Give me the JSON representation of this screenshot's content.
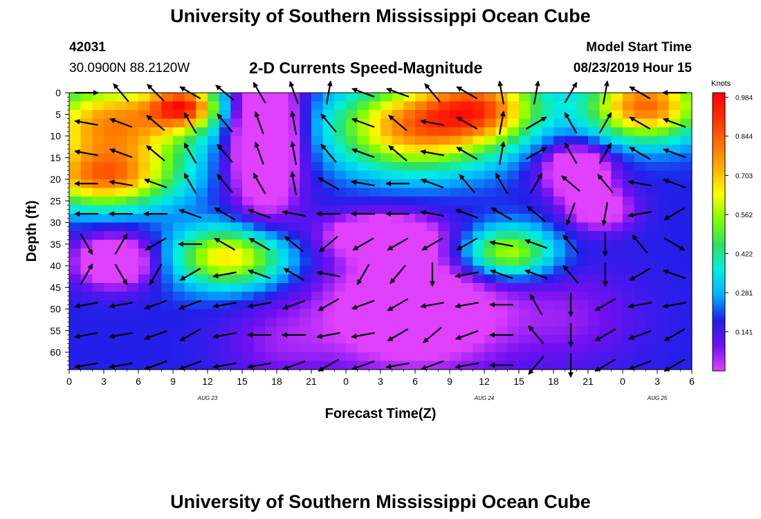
{
  "page": {
    "title_top": "University of Southern Mississippi Ocean Cube",
    "title_bottom": "University of Southern Mississippi Ocean Cube",
    "station_id": "42031",
    "station_location": "30.0900N 88.2120W",
    "subtitle": "2-D Currents Speed-Magnitude",
    "model_start_label": "Model Start Time",
    "model_start_value": "08/23/2019 Hour 15"
  },
  "chart_data": {
    "type": "heatmap",
    "title": "2-D Currents Speed-Magnitude",
    "xlabel": "Forecast Time(Z)",
    "ylabel": "Depth (ft)",
    "x_tick_labels": [
      "0",
      "3",
      "6",
      "9",
      "12",
      "15",
      "18",
      "21",
      "0",
      "3",
      "6",
      "9",
      "12",
      "15",
      "18",
      "21",
      "0",
      "3",
      "6"
    ],
    "date_labels": [
      "AUG 23",
      "AUG 24",
      "AUG 25"
    ],
    "y_tick_labels": [
      "0",
      "5",
      "10",
      "15",
      "20",
      "25",
      "30",
      "35",
      "40",
      "45",
      "50",
      "55",
      "60"
    ],
    "ylim": [
      0,
      64
    ],
    "y_inverted": true,
    "colorbar": {
      "unit": "Knots",
      "tick_labels": [
        "0.984",
        "0.844",
        "0.703",
        "0.562",
        "0.422",
        "0.281",
        "0.141"
      ],
      "range": [
        0,
        1.0
      ],
      "colors": [
        "#e040ff",
        "#7010f0",
        "#2020e8",
        "#00b0ff",
        "#00f0e0",
        "#30e060",
        "#80ff00",
        "#ffff00",
        "#ffb000",
        "#ff7000",
        "#ff3000",
        "#ff0000"
      ]
    },
    "speed_blobs": [
      {
        "t": 4,
        "d": 7,
        "rt": 7,
        "rd": 10,
        "v": 0.6
      },
      {
        "t": 3,
        "d": 20,
        "rt": 6,
        "rd": 7,
        "v": 0.55
      },
      {
        "t": 10,
        "d": 3,
        "rt": 3,
        "rd": 5,
        "v": 0.55
      },
      {
        "t": 4,
        "d": 39,
        "rt": 3.5,
        "rd": 6,
        "v": -0.35
      },
      {
        "t": 14,
        "d": 38,
        "rt": 5,
        "rd": 7,
        "v": 0.5
      },
      {
        "t": 17,
        "d": 10,
        "rt": 3,
        "rd": 18,
        "v": -0.45
      },
      {
        "t": 18,
        "d": 58,
        "rt": 5,
        "rd": 10,
        "v": -0.1
      },
      {
        "t": 30,
        "d": 8,
        "rt": 7,
        "rd": 10,
        "v": 0.6
      },
      {
        "t": 36,
        "d": 3,
        "rt": 5,
        "rd": 8,
        "v": 0.5
      },
      {
        "t": 27,
        "d": 33,
        "rt": 5,
        "rd": 5,
        "v": -0.3
      },
      {
        "t": 30,
        "d": 50,
        "rt": 8,
        "rd": 14,
        "v": -0.35
      },
      {
        "t": 38,
        "d": 37,
        "rt": 4,
        "rd": 6,
        "v": 0.45
      },
      {
        "t": 44,
        "d": 18,
        "rt": 3,
        "rd": 6,
        "v": -0.35
      },
      {
        "t": 46,
        "d": 27,
        "rt": 3,
        "rd": 5,
        "v": -0.25
      },
      {
        "t": 50,
        "d": 3,
        "rt": 5,
        "rd": 8,
        "v": 0.65
      },
      {
        "t": 44,
        "d": 52,
        "rt": 6,
        "rd": 12,
        "v": -0.1
      }
    ],
    "speed_base": 0.18,
    "vector_times": [
      1.5,
      4.5,
      7.5,
      10.5,
      13.5,
      16.5,
      19.5,
      22.5,
      25.5,
      28.5,
      31.5,
      34.5,
      37.5,
      40.5,
      43.5,
      46.5,
      49.5,
      52.5
    ],
    "vector_depths": [
      0,
      7,
      14,
      21,
      28,
      35,
      42,
      49,
      56,
      63
    ],
    "vector_angles_deg": [
      [
        0,
        130,
        135,
        150,
        140,
        120,
        110,
        80,
        160,
        160,
        130,
        150,
        100,
        80,
        60,
        80,
        150,
        180
      ],
      [
        170,
        160,
        140,
        120,
        130,
        110,
        100,
        130,
        160,
        140,
        170,
        150,
        80,
        30,
        120,
        60,
        150,
        160
      ],
      [
        170,
        160,
        140,
        120,
        130,
        110,
        100,
        130,
        160,
        140,
        170,
        150,
        80,
        30,
        120,
        60,
        150,
        160
      ],
      [
        180,
        170,
        160,
        120,
        130,
        120,
        100,
        150,
        170,
        180,
        160,
        130,
        120,
        60,
        140,
        130,
        170,
        160
      ],
      [
        180,
        180,
        180,
        160,
        150,
        160,
        170,
        180,
        180,
        180,
        170,
        160,
        150,
        140,
        250,
        260,
        190,
        210
      ],
      [
        300,
        60,
        210,
        180,
        150,
        150,
        140,
        220,
        210,
        210,
        210,
        210,
        170,
        160,
        130,
        270,
        130,
        330
      ],
      [
        60,
        300,
        240,
        210,
        190,
        160,
        150,
        170,
        240,
        230,
        270,
        190,
        160,
        160,
        130,
        270,
        210,
        160
      ],
      [
        190,
        190,
        200,
        200,
        190,
        190,
        200,
        210,
        200,
        210,
        190,
        190,
        180,
        120,
        270,
        210,
        190,
        190
      ],
      [
        190,
        190,
        200,
        210,
        190,
        180,
        180,
        190,
        190,
        210,
        220,
        200,
        180,
        130,
        270,
        210,
        200,
        210
      ],
      [
        190,
        190,
        200,
        200,
        190,
        190,
        200,
        210,
        200,
        190,
        200,
        190,
        180,
        230,
        270,
        210,
        200,
        210
      ]
    ]
  }
}
